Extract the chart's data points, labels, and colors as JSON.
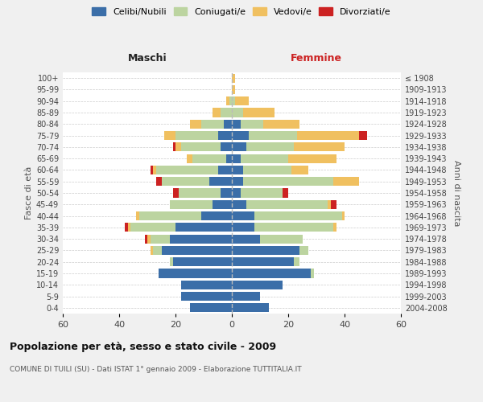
{
  "age_groups": [
    "0-4",
    "5-9",
    "10-14",
    "15-19",
    "20-24",
    "25-29",
    "30-34",
    "35-39",
    "40-44",
    "45-49",
    "50-54",
    "55-59",
    "60-64",
    "65-69",
    "70-74",
    "75-79",
    "80-84",
    "85-89",
    "90-94",
    "95-99",
    "100+"
  ],
  "birth_years": [
    "2004-2008",
    "1999-2003",
    "1994-1998",
    "1989-1993",
    "1984-1988",
    "1979-1983",
    "1974-1978",
    "1969-1973",
    "1964-1968",
    "1959-1963",
    "1954-1958",
    "1949-1953",
    "1944-1948",
    "1939-1943",
    "1934-1938",
    "1929-1933",
    "1924-1928",
    "1919-1923",
    "1914-1918",
    "1909-1913",
    "≤ 1908"
  ],
  "maschi_celibi": [
    15,
    18,
    18,
    26,
    21,
    25,
    22,
    20,
    11,
    7,
    4,
    8,
    5,
    2,
    4,
    5,
    3,
    0,
    0,
    0,
    0
  ],
  "maschi_coniugati": [
    0,
    0,
    0,
    0,
    1,
    3,
    7,
    16,
    22,
    15,
    15,
    17,
    22,
    12,
    14,
    15,
    8,
    4,
    1,
    0,
    0
  ],
  "maschi_vedovi": [
    0,
    0,
    0,
    0,
    0,
    1,
    1,
    1,
    1,
    0,
    0,
    0,
    1,
    2,
    2,
    4,
    4,
    3,
    1,
    0,
    0
  ],
  "maschi_divorziati": [
    0,
    0,
    0,
    0,
    0,
    0,
    1,
    1,
    0,
    0,
    2,
    2,
    1,
    0,
    1,
    0,
    0,
    0,
    0,
    0,
    0
  ],
  "femmine_celibi": [
    13,
    10,
    18,
    28,
    22,
    24,
    10,
    8,
    8,
    5,
    3,
    4,
    4,
    3,
    5,
    6,
    3,
    0,
    0,
    0,
    0
  ],
  "femmine_coniugati": [
    0,
    0,
    0,
    1,
    2,
    3,
    15,
    28,
    31,
    29,
    15,
    32,
    17,
    17,
    17,
    17,
    8,
    4,
    1,
    0,
    0
  ],
  "femmine_vedovi": [
    0,
    0,
    0,
    0,
    0,
    0,
    0,
    1,
    1,
    1,
    0,
    9,
    6,
    17,
    18,
    22,
    13,
    11,
    5,
    1,
    1
  ],
  "femmine_divorziati": [
    0,
    0,
    0,
    0,
    0,
    0,
    0,
    0,
    0,
    2,
    2,
    0,
    0,
    0,
    0,
    3,
    0,
    0,
    0,
    0,
    0
  ],
  "colors": {
    "celibi": "#3b6ea8",
    "coniugati": "#bcd4a0",
    "vedovi": "#f0c060",
    "divorziati": "#cc2222"
  },
  "title": "Popolazione per età, sesso e stato civile - 2009",
  "subtitle": "COMUNE DI TUILI (SU) - Dati ISTAT 1° gennaio 2009 - Elaborazione TUTTITALIA.IT",
  "xlabel_left": "Maschi",
  "xlabel_right": "Femmine",
  "ylabel_left": "Fasce di età",
  "ylabel_right": "Anni di nascita",
  "xlim": 60,
  "bg_color": "#f0f0f0",
  "plot_bg": "#ffffff",
  "legend_labels": [
    "Celibi/Nubili",
    "Coniugati/e",
    "Vedovi/e",
    "Divorziati/e"
  ]
}
